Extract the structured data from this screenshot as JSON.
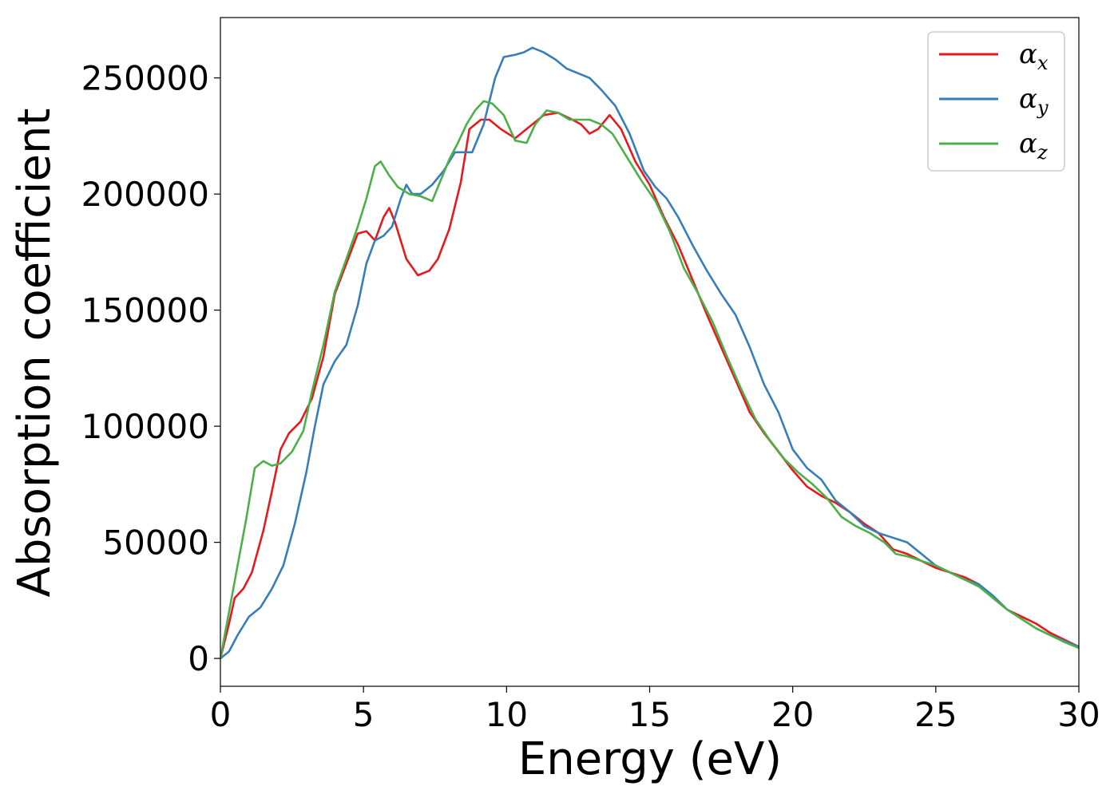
{
  "chart_data": {
    "type": "line",
    "title": "",
    "xlabel": "Energy (eV)",
    "ylabel": "Absorption coefficient",
    "xlim": [
      0,
      30
    ],
    "ylim": [
      -12000,
      276000
    ],
    "x_ticks": [
      "0",
      "5",
      "10",
      "15",
      "20",
      "25",
      "30"
    ],
    "y_ticks": [
      "0",
      "50000",
      "100000",
      "150000",
      "200000",
      "250000"
    ],
    "grid": false,
    "legend_position": "top-right",
    "series": [
      {
        "name": "α_x",
        "legend_symbol": "α",
        "legend_sub": "x",
        "color": "#e41a1c",
        "points": [
          [
            0,
            0
          ],
          [
            0.3,
            15000
          ],
          [
            0.5,
            26000
          ],
          [
            0.8,
            30000
          ],
          [
            1.1,
            37000
          ],
          [
            1.5,
            55000
          ],
          [
            1.8,
            72000
          ],
          [
            2.1,
            90000
          ],
          [
            2.4,
            97000
          ],
          [
            2.8,
            102000
          ],
          [
            3.2,
            112000
          ],
          [
            3.6,
            130000
          ],
          [
            4.0,
            157000
          ],
          [
            4.4,
            170000
          ],
          [
            4.8,
            183000
          ],
          [
            5.1,
            184000
          ],
          [
            5.4,
            180000
          ],
          [
            5.7,
            190000
          ],
          [
            5.9,
            194000
          ],
          [
            6.1,
            188000
          ],
          [
            6.5,
            172000
          ],
          [
            6.9,
            165000
          ],
          [
            7.3,
            167000
          ],
          [
            7.6,
            172000
          ],
          [
            8.0,
            185000
          ],
          [
            8.4,
            205000
          ],
          [
            8.7,
            228000
          ],
          [
            9.1,
            232000
          ],
          [
            9.4,
            232000
          ],
          [
            9.8,
            228000
          ],
          [
            10.3,
            224000
          ],
          [
            10.8,
            229000
          ],
          [
            11.3,
            234000
          ],
          [
            11.8,
            235000
          ],
          [
            12.3,
            232000
          ],
          [
            12.6,
            230000
          ],
          [
            12.9,
            226000
          ],
          [
            13.2,
            228000
          ],
          [
            13.6,
            234000
          ],
          [
            14.0,
            228000
          ],
          [
            14.5,
            214000
          ],
          [
            15.0,
            204000
          ],
          [
            15.5,
            190000
          ],
          [
            16.0,
            178000
          ],
          [
            16.5,
            163000
          ],
          [
            17.0,
            148000
          ],
          [
            17.5,
            134000
          ],
          [
            18.0,
            120000
          ],
          [
            18.5,
            106000
          ],
          [
            19.0,
            97000
          ],
          [
            19.5,
            89000
          ],
          [
            20.0,
            81000
          ],
          [
            20.5,
            74000
          ],
          [
            21.0,
            70000
          ],
          [
            21.5,
            67000
          ],
          [
            22.0,
            63000
          ],
          [
            22.5,
            58000
          ],
          [
            23.0,
            54000
          ],
          [
            23.5,
            47000
          ],
          [
            24.0,
            45000
          ],
          [
            24.5,
            42000
          ],
          [
            25.0,
            39000
          ],
          [
            25.5,
            37000
          ],
          [
            26.0,
            35000
          ],
          [
            26.5,
            32000
          ],
          [
            27.0,
            26000
          ],
          [
            27.5,
            21000
          ],
          [
            28.0,
            18000
          ],
          [
            28.5,
            15000
          ],
          [
            29.0,
            11000
          ],
          [
            29.5,
            8000
          ],
          [
            30.0,
            5000
          ]
        ]
      },
      {
        "name": "α_y",
        "legend_symbol": "α",
        "legend_sub": "y",
        "color": "#377eb8",
        "points": [
          [
            0,
            0
          ],
          [
            0.3,
            3000
          ],
          [
            0.6,
            10000
          ],
          [
            1.0,
            18000
          ],
          [
            1.4,
            22000
          ],
          [
            1.8,
            30000
          ],
          [
            2.2,
            40000
          ],
          [
            2.6,
            58000
          ],
          [
            3.0,
            80000
          ],
          [
            3.3,
            100000
          ],
          [
            3.6,
            118000
          ],
          [
            4.0,
            128000
          ],
          [
            4.4,
            135000
          ],
          [
            4.8,
            152000
          ],
          [
            5.1,
            170000
          ],
          [
            5.4,
            180000
          ],
          [
            5.7,
            182000
          ],
          [
            6.0,
            186000
          ],
          [
            6.3,
            198000
          ],
          [
            6.5,
            204000
          ],
          [
            6.7,
            200000
          ],
          [
            7.0,
            200000
          ],
          [
            7.4,
            204000
          ],
          [
            7.8,
            210000
          ],
          [
            8.2,
            218000
          ],
          [
            8.5,
            218000
          ],
          [
            8.8,
            218000
          ],
          [
            9.2,
            230000
          ],
          [
            9.6,
            250000
          ],
          [
            9.9,
            259000
          ],
          [
            10.3,
            260000
          ],
          [
            10.6,
            261000
          ],
          [
            10.9,
            263000
          ],
          [
            11.3,
            261000
          ],
          [
            11.7,
            258000
          ],
          [
            12.1,
            254000
          ],
          [
            12.5,
            252000
          ],
          [
            12.9,
            250000
          ],
          [
            13.3,
            245000
          ],
          [
            13.8,
            238000
          ],
          [
            14.3,
            226000
          ],
          [
            14.8,
            210000
          ],
          [
            15.2,
            203000
          ],
          [
            15.6,
            198000
          ],
          [
            16.0,
            190000
          ],
          [
            16.5,
            178000
          ],
          [
            17.0,
            167000
          ],
          [
            17.5,
            157000
          ],
          [
            18.0,
            148000
          ],
          [
            18.5,
            134000
          ],
          [
            19.0,
            118000
          ],
          [
            19.5,
            106000
          ],
          [
            20.0,
            90000
          ],
          [
            20.5,
            82000
          ],
          [
            21.0,
            77000
          ],
          [
            21.5,
            68000
          ],
          [
            22.0,
            63000
          ],
          [
            22.5,
            57000
          ],
          [
            23.0,
            54000
          ],
          [
            23.5,
            52000
          ],
          [
            24.0,
            50000
          ],
          [
            24.5,
            45000
          ],
          [
            25.0,
            40000
          ],
          [
            25.5,
            37000
          ],
          [
            26.0,
            34000
          ],
          [
            26.5,
            32000
          ],
          [
            27.0,
            27000
          ],
          [
            27.5,
            21000
          ],
          [
            28.0,
            17000
          ],
          [
            28.5,
            13000
          ],
          [
            29.0,
            10000
          ],
          [
            29.5,
            7500
          ],
          [
            30.0,
            5000
          ]
        ]
      },
      {
        "name": "α_z",
        "legend_symbol": "α",
        "legend_sub": "z",
        "color": "#4daf4a",
        "points": [
          [
            0,
            0
          ],
          [
            0.3,
            20000
          ],
          [
            0.6,
            40000
          ],
          [
            0.9,
            60000
          ],
          [
            1.2,
            82000
          ],
          [
            1.5,
            85000
          ],
          [
            1.8,
            83000
          ],
          [
            2.1,
            84000
          ],
          [
            2.5,
            89000
          ],
          [
            2.9,
            98000
          ],
          [
            3.2,
            115000
          ],
          [
            3.6,
            135000
          ],
          [
            4.0,
            158000
          ],
          [
            4.4,
            172000
          ],
          [
            4.8,
            186000
          ],
          [
            5.1,
            198000
          ],
          [
            5.4,
            212000
          ],
          [
            5.6,
            214000
          ],
          [
            5.9,
            208000
          ],
          [
            6.2,
            203000
          ],
          [
            6.6,
            200000
          ],
          [
            7.0,
            199000
          ],
          [
            7.4,
            197000
          ],
          [
            7.7,
            206000
          ],
          [
            8.0,
            215000
          ],
          [
            8.3,
            222000
          ],
          [
            8.6,
            230000
          ],
          [
            8.9,
            236000
          ],
          [
            9.2,
            240000
          ],
          [
            9.5,
            239000
          ],
          [
            9.9,
            234000
          ],
          [
            10.3,
            223000
          ],
          [
            10.7,
            222000
          ],
          [
            11.0,
            230000
          ],
          [
            11.4,
            236000
          ],
          [
            11.8,
            235000
          ],
          [
            12.2,
            232000
          ],
          [
            12.6,
            232000
          ],
          [
            12.9,
            232000
          ],
          [
            13.3,
            230000
          ],
          [
            13.7,
            226000
          ],
          [
            14.2,
            216000
          ],
          [
            14.7,
            206000
          ],
          [
            15.2,
            197000
          ],
          [
            15.7,
            184000
          ],
          [
            16.2,
            168000
          ],
          [
            16.7,
            157000
          ],
          [
            17.2,
            145000
          ],
          [
            17.7,
            130000
          ],
          [
            18.2,
            116000
          ],
          [
            18.7,
            103000
          ],
          [
            19.2,
            94000
          ],
          [
            19.7,
            86000
          ],
          [
            20.2,
            80000
          ],
          [
            20.7,
            75000
          ],
          [
            21.2,
            69000
          ],
          [
            21.7,
            61000
          ],
          [
            22.2,
            57000
          ],
          [
            22.7,
            54000
          ],
          [
            23.2,
            50000
          ],
          [
            23.6,
            45000
          ],
          [
            24.0,
            44000
          ],
          [
            24.5,
            42000
          ],
          [
            25.0,
            40000
          ],
          [
            25.5,
            37000
          ],
          [
            26.0,
            34000
          ],
          [
            26.5,
            31000
          ],
          [
            27.0,
            26000
          ],
          [
            27.5,
            21000
          ],
          [
            28.0,
            17000
          ],
          [
            28.5,
            13000
          ],
          [
            29.0,
            10000
          ],
          [
            29.5,
            7000
          ],
          [
            30.0,
            4500
          ]
        ]
      }
    ]
  }
}
